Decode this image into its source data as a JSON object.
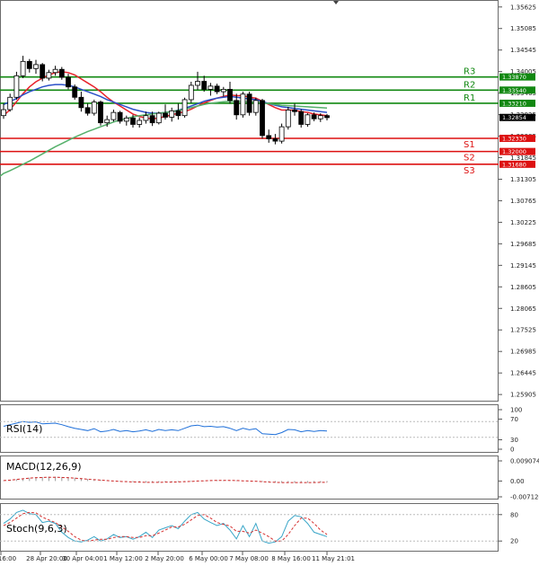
{
  "chart_data": [
    {
      "type": "candlestick",
      "title": "",
      "ylim": [
        1.2575,
        1.358
      ],
      "y_ticks": [
        "1.35625",
        "1.35085",
        "1.34545",
        "1.34005",
        "1.33465",
        "1.32925",
        "1.32385",
        "1.31845",
        "1.31305",
        "1.30765",
        "1.30225",
        "1.29685",
        "1.29145",
        "1.28605",
        "1.28065",
        "1.27525",
        "1.26985",
        "1.26445",
        "1.25905"
      ],
      "x_ticks": [
        "16:00",
        "28 Apr 20:00",
        "30 Apr 04:00",
        "1 May 12:00",
        "2 May 20:00",
        "6 May 00:00",
        "7 May 08:00",
        "8 May 16:00",
        "11 May 21:01"
      ],
      "current_price": "1.32854",
      "levels": [
        {
          "name": "R3",
          "value": 1.3387,
          "label": "1.33870",
          "color": "#118811"
        },
        {
          "name": "R2",
          "value": 1.3354,
          "label": "1.33540",
          "color": "#118811"
        },
        {
          "name": "R1",
          "value": 1.3321,
          "label": "1.33210",
          "color": "#118811"
        },
        {
          "name": "S1",
          "value": 1.3233,
          "label": "1.32330",
          "color": "#dd1111"
        },
        {
          "name": "S2",
          "value": 1.32,
          "label": "1.32000",
          "color": "#dd1111"
        },
        {
          "name": "S3",
          "value": 1.3168,
          "label": "1.31680",
          "color": "#dd1111"
        }
      ],
      "candles": [
        {
          "o": 1.329,
          "h": 1.332,
          "l": 1.3282,
          "c": 1.3305
        },
        {
          "o": 1.3305,
          "h": 1.3345,
          "l": 1.33,
          "c": 1.3336
        },
        {
          "o": 1.3336,
          "h": 1.34,
          "l": 1.333,
          "c": 1.339
        },
        {
          "o": 1.339,
          "h": 1.344,
          "l": 1.3384,
          "c": 1.3426
        },
        {
          "o": 1.3426,
          "h": 1.3432,
          "l": 1.3398,
          "c": 1.3408
        },
        {
          "o": 1.3408,
          "h": 1.343,
          "l": 1.3395,
          "c": 1.3418
        },
        {
          "o": 1.3418,
          "h": 1.3422,
          "l": 1.3376,
          "c": 1.3384
        },
        {
          "o": 1.3384,
          "h": 1.3405,
          "l": 1.3378,
          "c": 1.3398
        },
        {
          "o": 1.3398,
          "h": 1.3415,
          "l": 1.339,
          "c": 1.3406
        },
        {
          "o": 1.3406,
          "h": 1.3412,
          "l": 1.338,
          "c": 1.3386
        },
        {
          "o": 1.3386,
          "h": 1.3395,
          "l": 1.3356,
          "c": 1.3362
        },
        {
          "o": 1.3362,
          "h": 1.3368,
          "l": 1.333,
          "c": 1.3336
        },
        {
          "o": 1.3336,
          "h": 1.335,
          "l": 1.33,
          "c": 1.331
        },
        {
          "o": 1.331,
          "h": 1.332,
          "l": 1.329,
          "c": 1.3296
        },
        {
          "o": 1.3296,
          "h": 1.333,
          "l": 1.329,
          "c": 1.3324
        },
        {
          "o": 1.3324,
          "h": 1.3328,
          "l": 1.3265,
          "c": 1.3272
        },
        {
          "o": 1.3272,
          "h": 1.329,
          "l": 1.3262,
          "c": 1.328
        },
        {
          "o": 1.328,
          "h": 1.3305,
          "l": 1.3275,
          "c": 1.3298
        },
        {
          "o": 1.3298,
          "h": 1.3302,
          "l": 1.327,
          "c": 1.3276
        },
        {
          "o": 1.3276,
          "h": 1.329,
          "l": 1.3265,
          "c": 1.3284
        },
        {
          "o": 1.3284,
          "h": 1.3292,
          "l": 1.326,
          "c": 1.3268
        },
        {
          "o": 1.3268,
          "h": 1.3285,
          "l": 1.326,
          "c": 1.3278
        },
        {
          "o": 1.3278,
          "h": 1.33,
          "l": 1.327,
          "c": 1.329
        },
        {
          "o": 1.329,
          "h": 1.33,
          "l": 1.3264,
          "c": 1.3272
        },
        {
          "o": 1.3272,
          "h": 1.33,
          "l": 1.3268,
          "c": 1.3296
        },
        {
          "o": 1.3296,
          "h": 1.3318,
          "l": 1.328,
          "c": 1.3286
        },
        {
          "o": 1.3286,
          "h": 1.331,
          "l": 1.3275,
          "c": 1.3302
        },
        {
          "o": 1.3302,
          "h": 1.332,
          "l": 1.328,
          "c": 1.329
        },
        {
          "o": 1.329,
          "h": 1.3335,
          "l": 1.3285,
          "c": 1.333
        },
        {
          "o": 1.333,
          "h": 1.3375,
          "l": 1.3322,
          "c": 1.3366
        },
        {
          "o": 1.3366,
          "h": 1.34,
          "l": 1.3355,
          "c": 1.3376
        },
        {
          "o": 1.3376,
          "h": 1.339,
          "l": 1.335,
          "c": 1.3356
        },
        {
          "o": 1.3356,
          "h": 1.3372,
          "l": 1.334,
          "c": 1.3364
        },
        {
          "o": 1.3364,
          "h": 1.337,
          "l": 1.3344,
          "c": 1.335
        },
        {
          "o": 1.335,
          "h": 1.3362,
          "l": 1.3338,
          "c": 1.3356
        },
        {
          "o": 1.3356,
          "h": 1.3375,
          "l": 1.332,
          "c": 1.3328
        },
        {
          "o": 1.3328,
          "h": 1.3345,
          "l": 1.328,
          "c": 1.3292
        },
        {
          "o": 1.3292,
          "h": 1.335,
          "l": 1.3285,
          "c": 1.3344
        },
        {
          "o": 1.3344,
          "h": 1.335,
          "l": 1.329,
          "c": 1.3298
        },
        {
          "o": 1.3298,
          "h": 1.3335,
          "l": 1.329,
          "c": 1.3328
        },
        {
          "o": 1.3328,
          "h": 1.3332,
          "l": 1.3232,
          "c": 1.324
        },
        {
          "o": 1.324,
          "h": 1.3255,
          "l": 1.3222,
          "c": 1.3232
        },
        {
          "o": 1.3232,
          "h": 1.3244,
          "l": 1.3218,
          "c": 1.3226
        },
        {
          "o": 1.3226,
          "h": 1.327,
          "l": 1.322,
          "c": 1.3262
        },
        {
          "o": 1.3262,
          "h": 1.3312,
          "l": 1.3255,
          "c": 1.3304
        },
        {
          "o": 1.3304,
          "h": 1.332,
          "l": 1.329,
          "c": 1.33
        },
        {
          "o": 1.33,
          "h": 1.3306,
          "l": 1.326,
          "c": 1.3268
        },
        {
          "o": 1.3268,
          "h": 1.3296,
          "l": 1.3262,
          "c": 1.3292
        },
        {
          "o": 1.3292,
          "h": 1.3298,
          "l": 1.3276,
          "c": 1.3282
        },
        {
          "o": 1.3282,
          "h": 1.3296,
          "l": 1.3274,
          "c": 1.329
        },
        {
          "o": 1.329,
          "h": 1.3294,
          "l": 1.3278,
          "c": 1.3285
        }
      ],
      "ma_series": [
        {
          "color": "#e8212a",
          "values": [
            1.329,
            1.3305,
            1.3325,
            1.3345,
            1.3362,
            1.3375,
            1.3384,
            1.3392,
            1.3398,
            1.34,
            1.3398,
            1.3392,
            1.3382,
            1.3372,
            1.3362,
            1.335,
            1.3336,
            1.3324,
            1.3314,
            1.3304,
            1.3294,
            1.3288,
            1.3284,
            1.3282,
            1.3284,
            1.3288,
            1.3292,
            1.3296,
            1.33,
            1.3306,
            1.3314,
            1.3322,
            1.3328,
            1.3334,
            1.3338,
            1.3342,
            1.334,
            1.334,
            1.3336,
            1.3334,
            1.3326,
            1.3318,
            1.331,
            1.3304,
            1.3304,
            1.3304,
            1.33,
            1.3298,
            1.3294,
            1.3292,
            1.329
          ]
        },
        {
          "color": "#2b50c8",
          "values": [
            1.3318,
            1.3325,
            1.3333,
            1.3342,
            1.335,
            1.3356,
            1.3362,
            1.3366,
            1.3368,
            1.3368,
            1.3366,
            1.3362,
            1.3356,
            1.335,
            1.3344,
            1.3338,
            1.333,
            1.3324,
            1.3318,
            1.3312,
            1.3306,
            1.3302,
            1.3298,
            1.3296,
            1.3296,
            1.3298,
            1.33,
            1.3304,
            1.3308,
            1.3314,
            1.332,
            1.3326,
            1.333,
            1.3334,
            1.3336,
            1.3338,
            1.3336,
            1.3334,
            1.3332,
            1.333,
            1.3326,
            1.332,
            1.3316,
            1.3312,
            1.331,
            1.3308,
            1.3306,
            1.3304,
            1.3302,
            1.33,
            1.3298
          ]
        },
        {
          "color": "#55b06a",
          "values": [
            1.3145,
            1.3152,
            1.316,
            1.3168,
            1.3176,
            1.3185,
            1.3194,
            1.3203,
            1.3212,
            1.322,
            1.3228,
            1.3236,
            1.3243,
            1.325,
            1.3256,
            1.3262,
            1.3268,
            1.3274,
            1.3279,
            1.3283,
            1.3287,
            1.329,
            1.3292,
            1.3294,
            1.3296,
            1.3298,
            1.33,
            1.3303,
            1.3306,
            1.331,
            1.3314,
            1.3318,
            1.3321,
            1.3323,
            1.3325,
            1.3326,
            1.3326,
            1.3326,
            1.3325,
            1.3324,
            1.3322,
            1.332,
            1.3318,
            1.3316,
            1.3315,
            1.3314,
            1.3313,
            1.3312,
            1.3311,
            1.331,
            1.3309
          ]
        }
      ]
    },
    {
      "type": "line",
      "title": "RSI(14)",
      "ylim": [
        0,
        100
      ],
      "y_ticks": [
        "100",
        "70",
        "30",
        "0"
      ],
      "series": [
        {
          "color": "#1e6fd9",
          "values": [
            58,
            62,
            66,
            70,
            68,
            69,
            64,
            65,
            66,
            62,
            57,
            53,
            50,
            47,
            52,
            44,
            46,
            50,
            45,
            47,
            44,
            46,
            49,
            45,
            50,
            47,
            49,
            47,
            53,
            59,
            61,
            57,
            58,
            56,
            57,
            53,
            47,
            53,
            49,
            52,
            39,
            38,
            37,
            42,
            50,
            49,
            44,
            47,
            45,
            47,
            46
          ]
        }
      ]
    },
    {
      "type": "line",
      "title": "MACD(12,26,9)",
      "y_ticks": [
        "0.009074",
        "0.00",
        "-0.007124"
      ],
      "series": [
        {
          "color": "#cc2222",
          "values": [
            0.0002,
            0.0004,
            0.0007,
            0.001,
            0.0013,
            0.0015,
            0.0016,
            0.0017,
            0.0017,
            0.0016,
            0.0015,
            0.0013,
            0.0011,
            0.0008,
            0.0006,
            0.0004,
            0.0002,
            0.0,
            -0.0002,
            -0.0003,
            -0.0004,
            -0.0005,
            -0.0006,
            -0.0006,
            -0.0006,
            -0.0005,
            -0.0005,
            -0.0004,
            -0.0003,
            -0.0002,
            0.0,
            0.0001,
            0.0002,
            0.0003,
            0.0003,
            0.0003,
            0.0002,
            0.0001,
            0.0,
            -0.0001,
            -0.0003,
            -0.0005,
            -0.0006,
            -0.0007,
            -0.0007,
            -0.0007,
            -0.0007,
            -0.0007,
            -0.0007,
            -0.0006,
            -0.0006
          ]
        }
      ]
    },
    {
      "type": "line",
      "title": "Stoch(9,6,3)",
      "y_ticks": [
        "80",
        "20"
      ],
      "series": [
        {
          "color": "#3aa6c8",
          "values": [
            60,
            70,
            85,
            90,
            82,
            80,
            62,
            65,
            60,
            40,
            28,
            20,
            18,
            22,
            30,
            20,
            25,
            35,
            28,
            30,
            24,
            30,
            40,
            28,
            45,
            50,
            55,
            48,
            65,
            80,
            85,
            70,
            62,
            55,
            60,
            45,
            25,
            55,
            30,
            60,
            20,
            15,
            18,
            30,
            65,
            78,
            75,
            60,
            40,
            35,
            30
          ]
        },
        {
          "color": "#d63232",
          "values": [
            55,
            62,
            72,
            82,
            85,
            84,
            74,
            68,
            62,
            52,
            42,
            30,
            22,
            20,
            22,
            24,
            24,
            28,
            30,
            30,
            28,
            28,
            32,
            32,
            38,
            45,
            52,
            52,
            58,
            68,
            78,
            80,
            72,
            62,
            58,
            54,
            42,
            42,
            38,
            45,
            38,
            30,
            20,
            20,
            35,
            55,
            72,
            72,
            60,
            45,
            35
          ]
        }
      ]
    }
  ]
}
